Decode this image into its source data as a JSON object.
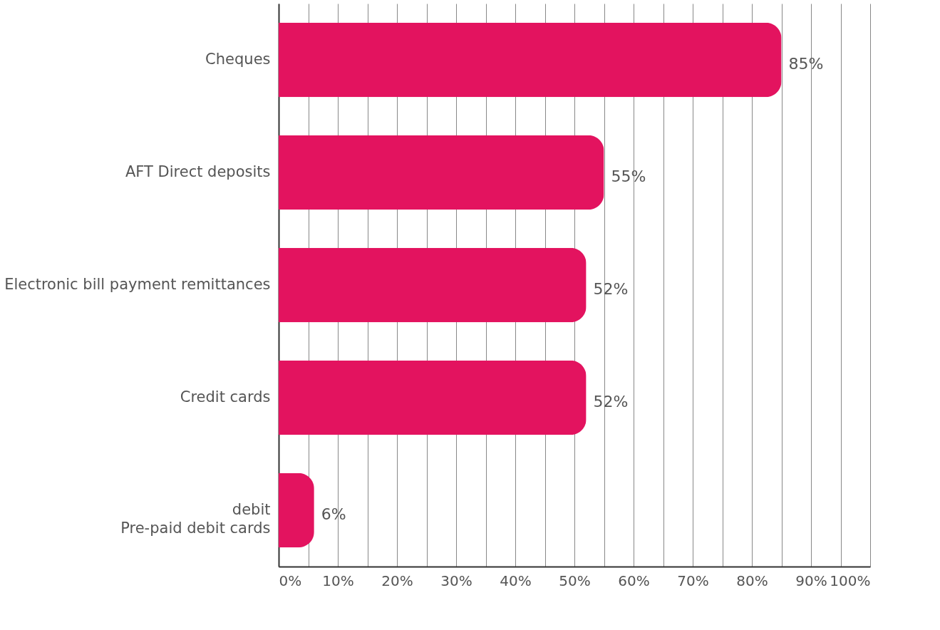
{
  "chart_data": {
    "type": "bar",
    "orientation": "horizontal",
    "categories": [
      "Cheques",
      "AFT Direct deposits",
      "Electronic bill payment remittances",
      "Credit cards",
      "debit\nPre-paid debit cards"
    ],
    "values": [
      85,
      55,
      52,
      52,
      6
    ],
    "value_labels": [
      "85%",
      "55%",
      "52%",
      "52%",
      "6%"
    ],
    "color": "#e3135f",
    "xlim": [
      0,
      100
    ],
    "xticks": [
      {
        "value": 0,
        "label": "0%"
      },
      {
        "value": 5,
        "label": null
      },
      {
        "value": 10,
        "label": "10%"
      },
      {
        "value": 15,
        "label": null
      },
      {
        "value": 20,
        "label": "20%"
      },
      {
        "value": 25,
        "label": null
      },
      {
        "value": 30,
        "label": "30%"
      },
      {
        "value": 35,
        "label": null
      },
      {
        "value": 40,
        "label": "40%"
      },
      {
        "value": 45,
        "label": null
      },
      {
        "value": 50,
        "label": "50%"
      },
      {
        "value": 55,
        "label": null
      },
      {
        "value": 60,
        "label": "60%"
      },
      {
        "value": 65,
        "label": null
      },
      {
        "value": 70,
        "label": "70%"
      },
      {
        "value": 75,
        "label": null
      },
      {
        "value": 80,
        "label": "80%"
      },
      {
        "value": 85,
        "label": null
      },
      {
        "value": 90,
        "label": "90%"
      },
      {
        "value": 95,
        "label": null
      },
      {
        "value": 100,
        "label": "100%"
      }
    ],
    "grid": "x"
  }
}
